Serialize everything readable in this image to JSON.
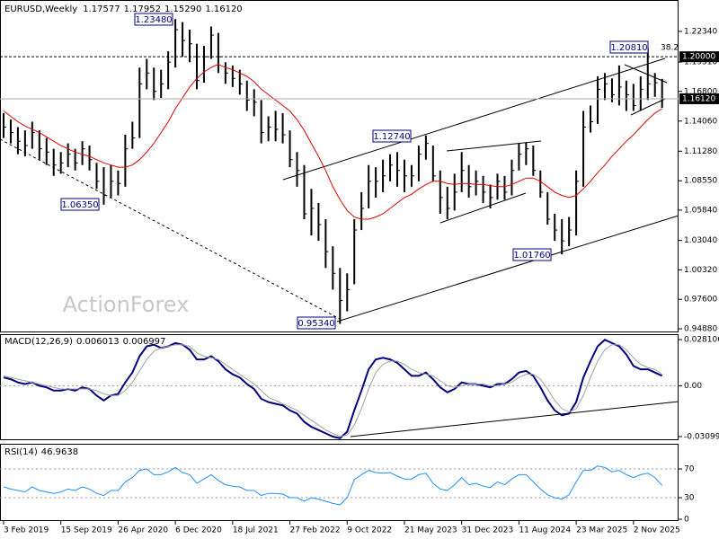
{
  "watermark": "ActionForex",
  "chart_data": [
    {
      "type": "ohlc",
      "title": "EURUSD,Weekly",
      "header_values": [
        "1.17577",
        "1.17952",
        "1.15290",
        "1.16120"
      ],
      "color": "#000000",
      "xlim": [
        -0.5,
        94.3
      ],
      "ylim": [
        0.9455,
        1.2524
      ],
      "yticks": [
        {
          "value": 1.2234,
          "label": "1.22340"
        },
        {
          "value": 1.1951,
          "label": "1.19510"
        },
        {
          "value": 1.168,
          "label": "1.16800"
        },
        {
          "value": 1.1406,
          "label": "1.14060"
        },
        {
          "value": 1.1128,
          "label": "1.11280"
        },
        {
          "value": 1.0855,
          "label": "1.08550"
        },
        {
          "value": 1.0584,
          "label": "1.05840"
        },
        {
          "value": 1.0304,
          "label": "1.03040"
        },
        {
          "value": 1.0032,
          "label": "1.00320"
        },
        {
          "value": 0.976,
          "label": "0.97600"
        },
        {
          "value": 0.9488,
          "label": "0.94880"
        }
      ],
      "levels": [
        {
          "value": 1.2,
          "label": "1.20000",
          "style": "dashed"
        },
        {
          "value": 1.1612,
          "label": "1.16120",
          "style": "solid"
        }
      ],
      "annotations": [
        "1.23480",
        "1.06350",
        "1.12740",
        "0.95340",
        "1.01760",
        "1.20810",
        "38.2"
      ],
      "high": [
        1.148,
        1.142,
        1.135,
        1.132,
        1.14,
        1.132,
        1.125,
        1.115,
        1.112,
        1.12,
        1.115,
        1.122,
        1.118,
        1.102,
        1.098,
        1.1,
        1.095,
        1.128,
        1.14,
        1.19,
        1.198,
        1.19,
        1.188,
        1.205,
        1.2348,
        1.232,
        1.225,
        1.212,
        1.21,
        1.228,
        1.222,
        1.195,
        1.192,
        1.188,
        1.178,
        1.17,
        1.16,
        1.145,
        1.15,
        1.148,
        1.132,
        1.112,
        1.1,
        1.078,
        1.065,
        1.05,
        1.025,
        1.005,
        1.0,
        1.05,
        1.075,
        1.1,
        1.098,
        1.105,
        1.11,
        1.112,
        1.105,
        1.1,
        1.118,
        1.1274,
        1.118,
        1.095,
        1.08,
        1.092,
        1.112,
        1.1,
        1.095,
        1.09,
        1.082,
        1.092,
        1.09,
        1.105,
        1.12,
        1.121,
        1.118,
        1.095,
        1.075,
        1.055,
        1.05,
        1.052,
        1.095,
        1.15,
        1.155,
        1.182,
        1.185,
        1.18,
        1.192,
        1.178,
        1.175,
        1.182,
        1.2081,
        1.185,
        1.17952
      ],
      "low": [
        1.125,
        1.12,
        1.11,
        1.108,
        1.115,
        1.105,
        1.1,
        1.09,
        1.092,
        1.098,
        1.095,
        1.1,
        1.095,
        1.078,
        1.0635,
        1.07,
        1.072,
        1.08,
        1.115,
        1.125,
        1.17,
        1.16,
        1.162,
        1.17,
        1.19,
        1.2,
        1.195,
        1.17,
        1.176,
        1.198,
        1.185,
        1.175,
        1.172,
        1.165,
        1.15,
        1.145,
        1.12,
        1.122,
        1.122,
        1.12,
        1.098,
        1.08,
        1.05,
        1.035,
        1.03,
        1.005,
        0.985,
        0.9534,
        0.965,
        0.99,
        1.04,
        1.06,
        1.07,
        1.075,
        1.085,
        1.08,
        1.075,
        1.08,
        1.085,
        1.105,
        1.085,
        1.055,
        1.05,
        1.058,
        1.075,
        1.07,
        1.072,
        1.065,
        1.06,
        1.068,
        1.068,
        1.072,
        1.095,
        1.1,
        1.09,
        1.07,
        1.045,
        1.03,
        1.0176,
        1.025,
        1.035,
        1.08,
        1.13,
        1.138,
        1.16,
        1.158,
        1.155,
        1.15,
        1.15,
        1.15,
        1.16,
        1.163,
        1.1529
      ],
      "close": [
        1.135,
        1.13,
        1.122,
        1.118,
        1.13,
        1.115,
        1.112,
        1.1,
        1.102,
        1.11,
        1.102,
        1.115,
        1.105,
        1.085,
        1.072,
        1.085,
        1.083,
        1.115,
        1.125,
        1.175,
        1.185,
        1.168,
        1.175,
        1.195,
        1.225,
        1.215,
        1.212,
        1.178,
        1.2,
        1.22,
        1.2,
        1.185,
        1.18,
        1.175,
        1.16,
        1.158,
        1.13,
        1.135,
        1.133,
        1.128,
        1.105,
        1.095,
        1.055,
        1.06,
        1.045,
        1.02,
        1.0,
        0.975,
        0.985,
        1.04,
        1.06,
        1.085,
        1.085,
        1.09,
        1.1,
        1.095,
        1.09,
        1.09,
        1.11,
        1.12,
        1.09,
        1.07,
        1.06,
        1.075,
        1.095,
        1.08,
        1.085,
        1.075,
        1.07,
        1.085,
        1.075,
        1.095,
        1.11,
        1.115,
        1.095,
        1.075,
        1.05,
        1.04,
        1.03,
        1.04,
        1.085,
        1.135,
        1.14,
        1.17,
        1.175,
        1.165,
        1.172,
        1.165,
        1.155,
        1.17,
        1.175,
        1.176,
        1.1612
      ],
      "ma": {
        "color": "#e00000",
        "values": [
          1.15,
          1.145,
          1.14,
          1.136,
          1.133,
          1.13,
          1.126,
          1.122,
          1.118,
          1.115,
          1.112,
          1.11,
          1.108,
          1.105,
          1.102,
          1.1,
          1.098,
          1.098,
          1.1,
          1.105,
          1.112,
          1.12,
          1.13,
          1.14,
          1.152,
          1.162,
          1.172,
          1.18,
          1.186,
          1.19,
          1.193,
          1.19,
          1.188,
          1.185,
          1.182,
          1.177,
          1.17,
          1.165,
          1.16,
          1.155,
          1.15,
          1.142,
          1.132,
          1.12,
          1.108,
          1.095,
          1.08,
          1.068,
          1.058,
          1.052,
          1.05,
          1.05,
          1.052,
          1.055,
          1.06,
          1.065,
          1.07,
          1.073,
          1.078,
          1.082,
          1.085,
          1.085,
          1.083,
          1.082,
          1.083,
          1.083,
          1.082,
          1.082,
          1.081,
          1.08,
          1.08,
          1.082,
          1.085,
          1.088,
          1.088,
          1.085,
          1.08,
          1.075,
          1.072,
          1.07,
          1.072,
          1.078,
          1.085,
          1.093,
          1.1,
          1.108,
          1.115,
          1.122,
          1.128,
          1.135,
          1.142,
          1.148,
          1.152
        ]
      }
    },
    {
      "type": "line",
      "title": "MACD(12,26,9)",
      "header_values": [
        "0.006013",
        "0.006997"
      ],
      "xlim": [
        -0.5,
        94.3
      ],
      "ylim": [
        -0.03318,
        0.03139
      ],
      "yticks": [
        0.028106,
        {
          "value": 0,
          "label": "0.00"
        },
        -0.03099
      ],
      "level_ticks": [
        1
      ],
      "series": [
        {
          "color": "#000080",
          "width": 2,
          "values": [
            0.005,
            0.004,
            0.002,
            0.001,
            0.002,
            0.0,
            -0.001,
            -0.003,
            -0.003,
            -0.002,
            -0.003,
            -0.001,
            -0.002,
            -0.006,
            -0.009,
            -0.006,
            -0.005,
            0.002,
            0.008,
            0.018,
            0.024,
            0.025,
            0.023,
            0.024,
            0.026,
            0.025,
            0.022,
            0.016,
            0.016,
            0.018,
            0.015,
            0.01,
            0.007,
            0.005,
            0.001,
            -0.002,
            -0.008,
            -0.01,
            -0.011,
            -0.012,
            -0.015,
            -0.017,
            -0.022,
            -0.025,
            -0.027,
            -0.029,
            -0.031,
            -0.032,
            -0.028,
            -0.015,
            -0.003,
            0.01,
            0.016,
            0.017,
            0.016,
            0.014,
            0.01,
            0.006,
            0.006,
            0.008,
            0.004,
            -0.001,
            -0.004,
            -0.002,
            0.002,
            0.001,
            0.001,
            0.0,
            -0.001,
            0.001,
            0.001,
            0.004,
            0.008,
            0.009,
            0.006,
            -0.001,
            -0.009,
            -0.015,
            -0.018,
            -0.017,
            -0.01,
            0.005,
            0.015,
            0.024,
            0.028,
            0.026,
            0.024,
            0.019,
            0.012,
            0.01,
            0.01,
            0.008,
            0.006013
          ]
        },
        {
          "color": "#a0a0a0",
          "width": 1,
          "values": [
            0.006,
            0.005,
            0.004,
            0.003,
            0.002,
            0.001,
            0.0,
            -0.001,
            -0.002,
            -0.002,
            -0.002,
            -0.002,
            -0.002,
            -0.003,
            -0.005,
            -0.006,
            -0.006,
            -0.003,
            0.002,
            0.009,
            0.016,
            0.021,
            0.023,
            0.024,
            0.025,
            0.025,
            0.024,
            0.02,
            0.018,
            0.017,
            0.016,
            0.013,
            0.01,
            0.007,
            0.004,
            0.001,
            -0.003,
            -0.007,
            -0.009,
            -0.011,
            -0.013,
            -0.015,
            -0.018,
            -0.021,
            -0.024,
            -0.027,
            -0.029,
            -0.031,
            -0.03,
            -0.024,
            -0.014,
            -0.002,
            0.008,
            0.013,
            0.015,
            0.015,
            0.013,
            0.01,
            0.008,
            0.007,
            0.006,
            0.003,
            0.0,
            -0.001,
            0.0,
            0.001,
            0.001,
            0.001,
            0.0,
            0.0,
            0.001,
            0.002,
            0.005,
            0.007,
            0.007,
            0.004,
            -0.002,
            -0.009,
            -0.014,
            -0.016,
            -0.014,
            -0.006,
            0.005,
            0.015,
            0.022,
            0.025,
            0.025,
            0.022,
            0.017,
            0.013,
            0.011,
            0.01,
            0.006997
          ]
        }
      ]
    },
    {
      "type": "line",
      "title": "RSI(14)",
      "header_values": [
        "46.9638"
      ],
      "xlim": [
        -0.5,
        94.3
      ],
      "ylim": [
        -2.5,
        105
      ],
      "yticks": [
        70,
        30,
        0
      ],
      "level_ticks": [
        0,
        1
      ],
      "xticks": [
        {
          "value": 0,
          "label": "3 Feb 2019"
        },
        {
          "value": 8,
          "label": "15 Sep 2019"
        },
        {
          "value": 16,
          "label": "26 Apr 2020"
        },
        {
          "value": 24,
          "label": "6 Dec 2020"
        },
        {
          "value": 32,
          "label": "18 Jul 2021"
        },
        {
          "value": 40,
          "label": "27 Feb 2022"
        },
        {
          "value": 48,
          "label": "9 Oct 2022"
        },
        {
          "value": 56,
          "label": "21 May 2023"
        },
        {
          "value": 64,
          "label": "31 Dec 2023"
        },
        {
          "value": 72,
          "label": "11 Aug 2024"
        },
        {
          "value": 80,
          "label": "23 Mar 2025"
        },
        {
          "value": 88,
          "label": "2 Nov 2025"
        }
      ],
      "series": [
        {
          "color": "#1e90ff",
          "width": 1,
          "values": [
            45,
            42,
            40,
            38,
            45,
            40,
            38,
            36,
            38,
            42,
            40,
            45,
            42,
            36,
            33,
            40,
            40,
            52,
            58,
            68,
            70,
            62,
            62,
            66,
            72,
            65,
            62,
            50,
            56,
            62,
            54,
            48,
            46,
            45,
            40,
            40,
            33,
            36,
            36,
            35,
            30,
            30,
            25,
            30,
            28,
            25,
            22,
            20,
            30,
            55,
            62,
            68,
            65,
            64,
            65,
            60,
            56,
            56,
            62,
            64,
            50,
            42,
            40,
            48,
            58,
            48,
            50,
            46,
            44,
            52,
            48,
            56,
            62,
            62,
            52,
            42,
            34,
            30,
            28,
            34,
            52,
            68,
            68,
            74,
            72,
            66,
            68,
            62,
            58,
            62,
            64,
            58,
            46.9638
          ]
        }
      ]
    }
  ]
}
